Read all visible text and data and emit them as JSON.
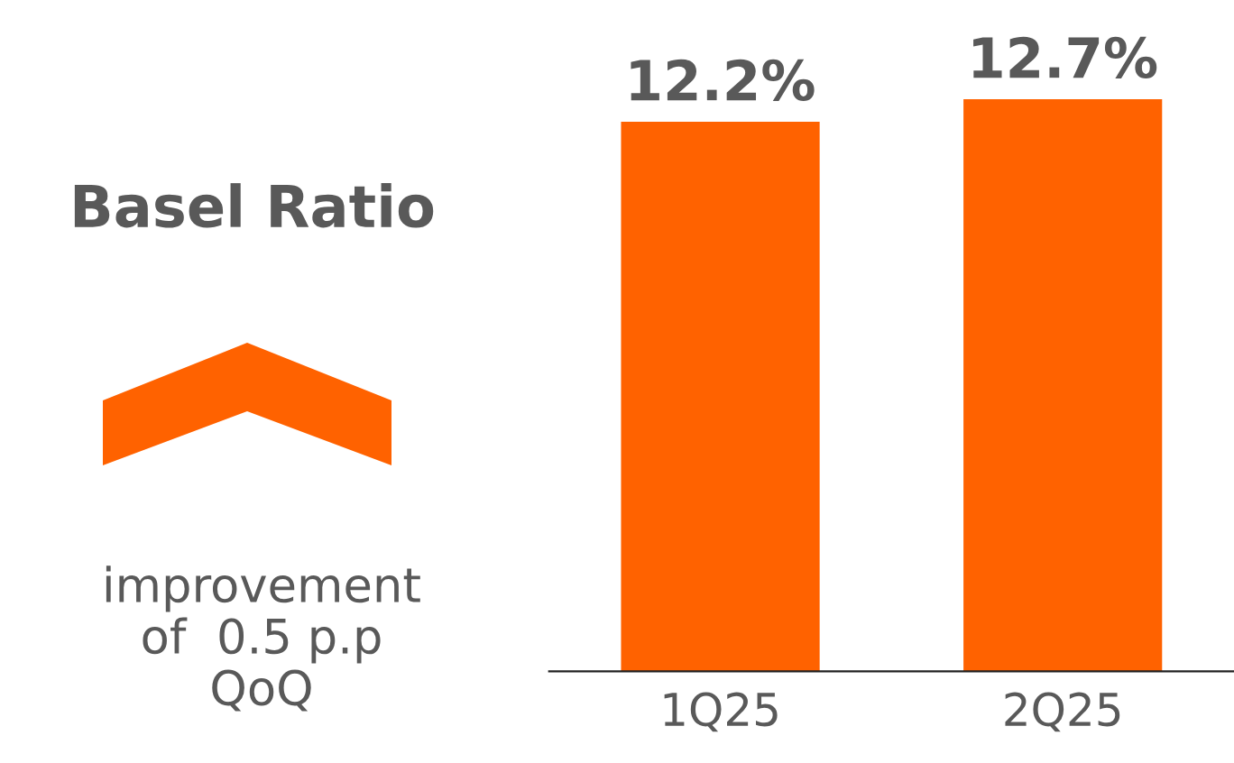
{
  "chart_data": {
    "type": "bar",
    "title": "Basel Ratio",
    "categories": [
      "1Q25",
      "2Q25"
    ],
    "values": [
      12.2,
      12.7
    ],
    "color": "#ff6200",
    "value_labels": [
      "12.2%",
      "12.7%"
    ],
    "tick_labels": "x",
    "grid": false,
    "legend": false,
    "annotations": [
      "improvement\nof  0.5 p.p\nQoQ"
    ]
  }
}
